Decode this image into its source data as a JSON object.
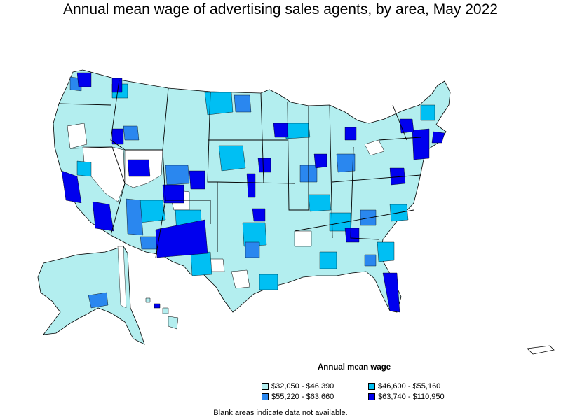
{
  "title": "Annual mean wage of advertising sales agents, by area, May 2022",
  "legend": {
    "title": "Annual mean wage",
    "items": [
      {
        "label": "$32,050 - $46,390",
        "color": "#b3eeef"
      },
      {
        "label": "$46,600 - $55,160",
        "color": "#00bff3"
      },
      {
        "label": "$55,220 - $63,660",
        "color": "#2a87ef"
      },
      {
        "label": "$63,740 - $110,950",
        "color": "#0000ee"
      }
    ]
  },
  "footnote": "Blank areas indicate data not available.",
  "map": {
    "regions": [
      "contiguous-us",
      "alaska",
      "hawaii",
      "puerto-rico"
    ],
    "colors": {
      "low": "#b3eeef",
      "mid": "#00bff3",
      "high": "#2a87ef",
      "top": "#0000ee",
      "blank": "#ffffff",
      "border": "#000000"
    }
  }
}
